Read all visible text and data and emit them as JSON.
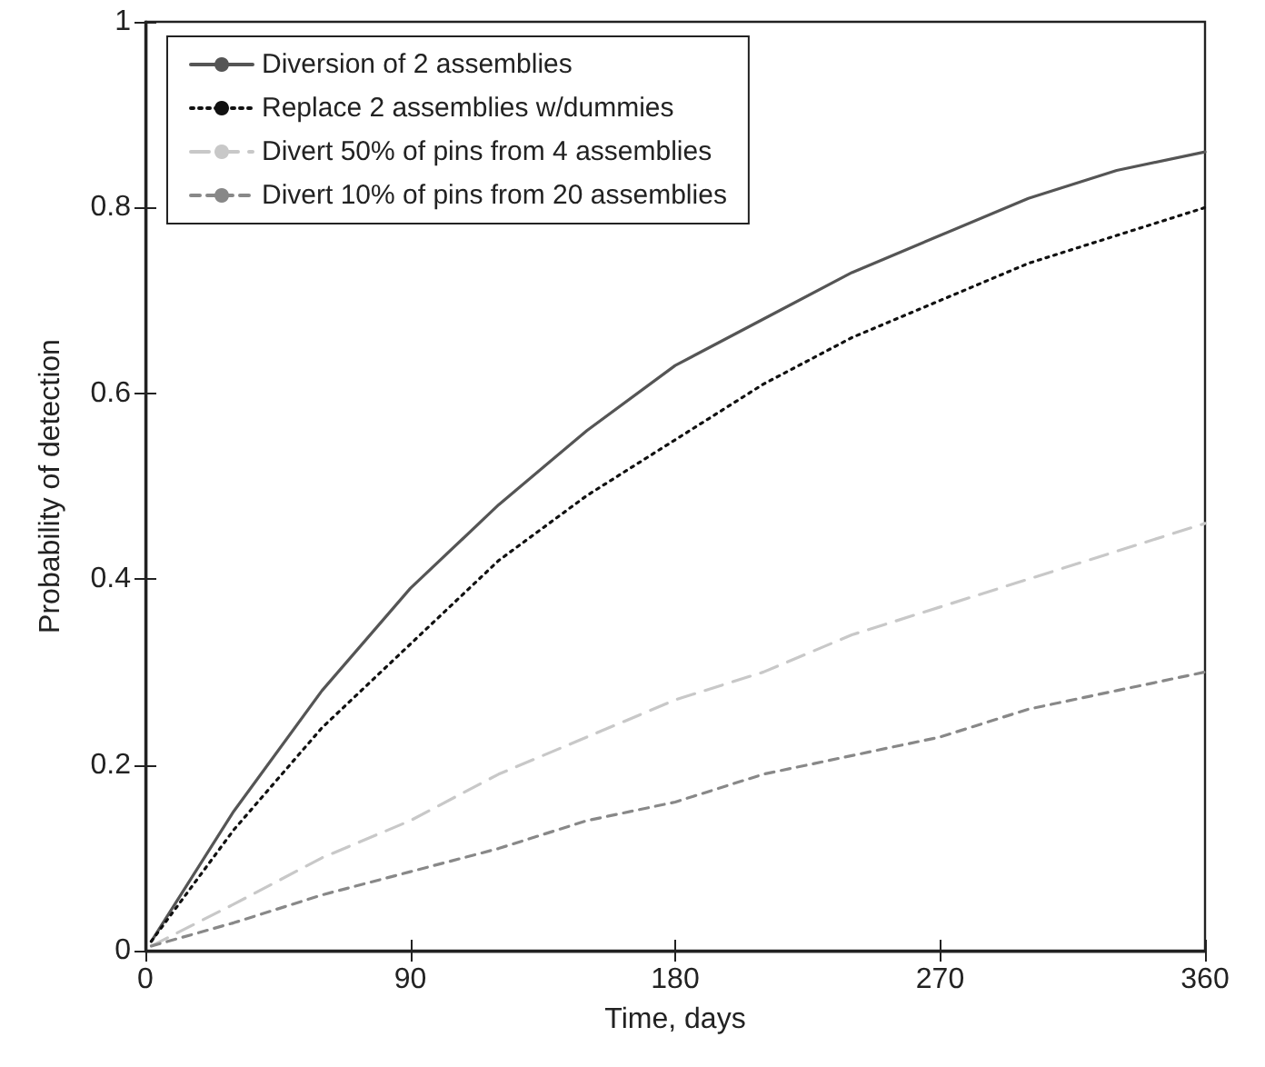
{
  "chart_data": {
    "type": "line",
    "xlabel": "Time, days",
    "ylabel": "Probability of detection",
    "x": [
      2,
      30,
      60,
      90,
      120,
      150,
      180,
      210,
      240,
      270,
      300,
      330,
      360
    ],
    "series": [
      {
        "name": "Diversion of 2 assemblies",
        "color": "#555555",
        "line_style": "solid",
        "values": [
          0.01,
          0.15,
          0.28,
          0.39,
          0.48,
          0.56,
          0.63,
          0.68,
          0.73,
          0.77,
          0.81,
          0.84,
          0.86
        ]
      },
      {
        "name": "Replace 2 assemblies w/dummies",
        "color": "#111111",
        "line_style": "dotted",
        "values": [
          0.01,
          0.13,
          0.24,
          0.33,
          0.42,
          0.49,
          0.55,
          0.61,
          0.66,
          0.7,
          0.74,
          0.77,
          0.8
        ]
      },
      {
        "name": "Divert 50% of pins from 4 assemblies",
        "color": "#c8c8c8",
        "line_style": "dashed",
        "values": [
          0.005,
          0.05,
          0.1,
          0.14,
          0.19,
          0.23,
          0.27,
          0.3,
          0.34,
          0.37,
          0.4,
          0.43,
          0.46
        ]
      },
      {
        "name": "Divert 10% of pins from 20 assemblies",
        "color": "#888888",
        "line_style": "dashed",
        "values": [
          0.005,
          0.03,
          0.06,
          0.085,
          0.11,
          0.14,
          0.16,
          0.19,
          0.21,
          0.23,
          0.26,
          0.28,
          0.3
        ]
      }
    ],
    "xlim": [
      0,
      360
    ],
    "xticks": [
      0,
      90,
      180,
      270,
      360
    ],
    "ylim": [
      0,
      1
    ],
    "yticks": [
      0,
      0.2,
      0.4,
      0.6,
      0.8,
      1
    ],
    "grid": false,
    "legend": "top left",
    "marker": "none"
  }
}
